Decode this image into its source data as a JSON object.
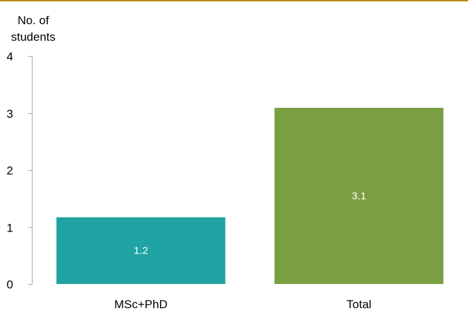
{
  "chart_data": {
    "type": "bar",
    "title": "",
    "xlabel": "",
    "ylabel_lines": [
      "No. of",
      "students"
    ],
    "categories": [
      "MSc+PhD",
      "Total"
    ],
    "values": [
      1.17,
      3.09
    ],
    "data_labels": [
      "1.2",
      "3.1"
    ],
    "bar_colors": [
      "#1fa3a3",
      "#7a9e42"
    ],
    "ylim": [
      0,
      4
    ],
    "yticks": [
      0,
      1,
      2,
      3,
      4
    ],
    "grid": false,
    "legend": "none"
  },
  "colors": {
    "axis": "#a6a6a6",
    "top_rule": "#b8860b"
  }
}
